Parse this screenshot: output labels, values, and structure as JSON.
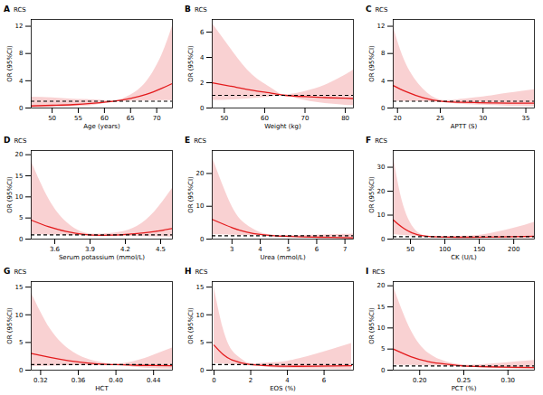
{
  "chart_data": [
    {
      "type": "line",
      "panel": "A",
      "title": "RCS",
      "x_label": "Age (years)",
      "y_label": "OR (95%CI)",
      "x": [
        46,
        50,
        54,
        58,
        62,
        65,
        68,
        71,
        73
      ],
      "values": [
        0.3,
        0.4,
        0.5,
        0.7,
        1.0,
        1.4,
        2.0,
        2.9,
        3.6
      ],
      "lower": [
        0.05,
        0.1,
        0.2,
        0.4,
        0.9,
        1.0,
        1.05,
        1.1,
        1.1
      ],
      "upper": [
        1.6,
        1.5,
        1.3,
        1.2,
        1.1,
        1.9,
        3.8,
        7.8,
        12.0
      ],
      "color": "#e31a1c",
      "xlim": [
        46,
        73
      ],
      "xticks": [
        50,
        55,
        60,
        65,
        70
      ],
      "ylim": [
        0,
        13
      ],
      "yticks": [
        0,
        4,
        8,
        12
      ],
      "reference": {
        "value": 1,
        "line_style": "dashed"
      }
    },
    {
      "type": "line",
      "panel": "B",
      "title": "RCS",
      "x_label": "Weight (kg)",
      "y_label": "OR (95%CI)",
      "x": [
        47,
        52,
        57,
        62,
        65,
        70,
        75,
        80,
        82
      ],
      "values": [
        2.0,
        1.7,
        1.4,
        1.15,
        1.0,
        0.9,
        0.82,
        0.77,
        0.75
      ],
      "lower": [
        0.6,
        0.65,
        0.75,
        0.9,
        0.95,
        0.6,
        0.35,
        0.22,
        0.2
      ],
      "upper": [
        6.7,
        4.5,
        2.6,
        1.5,
        1.05,
        1.3,
        1.8,
        2.6,
        3.0
      ],
      "color": "#e31a1c",
      "xlim": [
        47,
        82
      ],
      "xticks": [
        50,
        60,
        70,
        80
      ],
      "ylim": [
        0,
        7
      ],
      "yticks": [
        0,
        2,
        4,
        6
      ],
      "reference": {
        "value": 1,
        "line_style": "dashed"
      }
    },
    {
      "type": "line",
      "panel": "C",
      "title": "RCS",
      "x_label": "APTT (S)",
      "y_label": "OR (95%CI)",
      "x": [
        19.5,
        21,
        23,
        25,
        27,
        29,
        31,
        33,
        36
      ],
      "values": [
        3.3,
        2.4,
        1.5,
        1.0,
        0.85,
        0.8,
        0.75,
        0.72,
        0.7
      ],
      "lower": [
        1.0,
        0.95,
        0.9,
        0.85,
        0.6,
        0.45,
        0.35,
        0.28,
        0.2
      ],
      "upper": [
        12,
        6.5,
        2.8,
        1.2,
        1.2,
        1.5,
        1.8,
        2.2,
        2.7
      ],
      "color": "#e31a1c",
      "xlim": [
        19.5,
        36
      ],
      "xticks": [
        20,
        25,
        30,
        35
      ],
      "ylim": [
        0,
        13
      ],
      "yticks": [
        0,
        4,
        8,
        12
      ],
      "reference": {
        "value": 1,
        "line_style": "dashed"
      }
    },
    {
      "type": "line",
      "panel": "D",
      "title": "RCS",
      "x_label": "Serum potassium (mmol/L)",
      "y_label": "OR (95%CI)",
      "x": [
        3.4,
        3.55,
        3.7,
        3.85,
        4.0,
        4.15,
        4.3,
        4.45,
        4.6
      ],
      "values": [
        4.5,
        2.9,
        1.8,
        1.1,
        0.9,
        1.0,
        1.3,
        1.8,
        2.5
      ],
      "lower": [
        1.0,
        0.95,
        0.9,
        0.8,
        0.7,
        0.65,
        0.6,
        0.55,
        0.5
      ],
      "upper": [
        18.5,
        9.5,
        4.0,
        1.5,
        1.2,
        1.6,
        3.0,
        6.5,
        12.0
      ],
      "color": "#e31a1c",
      "xlim": [
        3.4,
        4.6
      ],
      "xticks": [
        3.6,
        3.9,
        4.2,
        4.5
      ],
      "ylim": [
        0,
        21
      ],
      "yticks": [
        0,
        5,
        10,
        15,
        20
      ],
      "reference": {
        "value": 1,
        "line_style": "dashed"
      }
    },
    {
      "type": "line",
      "panel": "E",
      "title": "RCS",
      "x_label": "Urea (mmol/L)",
      "y_label": "OR (95%CI)",
      "x": [
        2.3,
        3,
        3.5,
        4,
        4.5,
        5,
        5.5,
        6.5,
        7.3
      ],
      "values": [
        6.0,
        3.5,
        2.2,
        1.4,
        1.0,
        0.8,
        0.65,
        0.5,
        0.4
      ],
      "lower": [
        1.3,
        1.2,
        1.1,
        1.0,
        0.9,
        0.6,
        0.4,
        0.2,
        0.1
      ],
      "upper": [
        25,
        10,
        4.5,
        2.0,
        1.2,
        1.1,
        1.1,
        1.3,
        1.5
      ],
      "color": "#e31a1c",
      "xlim": [
        2.3,
        7.3
      ],
      "xticks": [
        3,
        4,
        5,
        6,
        7
      ],
      "ylim": [
        0,
        27
      ],
      "yticks": [
        0,
        10,
        20
      ],
      "reference": {
        "value": 1,
        "line_style": "dashed"
      }
    },
    {
      "type": "line",
      "panel": "F",
      "title": "RCS",
      "x_label": "CK (U/L)",
      "y_label": "OR (95%CI)",
      "x": [
        25,
        40,
        60,
        80,
        100,
        130,
        160,
        200,
        230
      ],
      "values": [
        8.0,
        4.5,
        1.8,
        1.0,
        0.8,
        0.75,
        0.8,
        1.0,
        1.2
      ],
      "lower": [
        1.8,
        1.5,
        1.1,
        0.9,
        0.7,
        0.5,
        0.35,
        0.25,
        0.2
      ],
      "upper": [
        35,
        14,
        3.0,
        1.1,
        1.0,
        1.2,
        2.0,
        4.5,
        7.0
      ],
      "color": "#e31a1c",
      "xlim": [
        25,
        230
      ],
      "xticks": [
        50,
        100,
        150,
        200
      ],
      "ylim": [
        0,
        37
      ],
      "yticks": [
        0,
        10,
        20,
        30
      ],
      "reference": {
        "value": 1,
        "line_style": "dashed"
      }
    },
    {
      "type": "line",
      "panel": "G",
      "title": "RCS",
      "x_label": "HCT",
      "y_label": "OR (95%CI)",
      "x": [
        0.31,
        0.33,
        0.35,
        0.37,
        0.39,
        0.4,
        0.42,
        0.44,
        0.46
      ],
      "values": [
        3.0,
        2.3,
        1.7,
        1.3,
        1.05,
        1.0,
        0.9,
        0.85,
        0.8
      ],
      "lower": [
        0.7,
        0.75,
        0.8,
        0.85,
        0.9,
        0.95,
        0.55,
        0.3,
        0.15
      ],
      "upper": [
        14,
        7.5,
        3.8,
        2.0,
        1.2,
        1.05,
        1.6,
        2.7,
        4.0
      ],
      "color": "#e31a1c",
      "xlim": [
        0.31,
        0.46
      ],
      "xticks": [
        0.32,
        0.36,
        {
          "value": 0.4,
          "label": "0.40"
        },
        0.44
      ],
      "ylim": [
        0,
        16
      ],
      "yticks": [
        0,
        5,
        10,
        15
      ],
      "reference": {
        "value": 1,
        "line_style": "dashed"
      }
    },
    {
      "type": "line",
      "panel": "H",
      "title": "RCS",
      "x_label": "EOS (%)",
      "y_label": "OR (95%CI)",
      "x": [
        0,
        0.5,
        1,
        1.5,
        2,
        3,
        4,
        5.5,
        7.5
      ],
      "values": [
        4.5,
        2.8,
        1.8,
        1.3,
        1.0,
        0.8,
        0.7,
        0.72,
        0.8
      ],
      "lower": [
        1.2,
        1.1,
        1.0,
        0.9,
        0.8,
        0.5,
        0.3,
        0.2,
        0.1
      ],
      "upper": [
        15,
        7.5,
        3.5,
        2.0,
        1.2,
        1.3,
        1.6,
        2.8,
        4.8
      ],
      "color": "#e31a1c",
      "xlim": [
        -0.1,
        7.6
      ],
      "xticks": [
        0,
        2,
        4,
        6
      ],
      "ylim": [
        0,
        16
      ],
      "yticks": [
        0,
        5,
        10,
        15
      ],
      "reference": {
        "value": 1,
        "line_style": "dashed"
      }
    },
    {
      "type": "line",
      "panel": "I",
      "title": "RCS",
      "x_label": "PCT (%)",
      "y_label": "OR (95%CI)",
      "x": [
        0.17,
        0.19,
        0.21,
        0.23,
        0.25,
        0.27,
        0.29,
        0.31,
        0.33
      ],
      "values": [
        5.0,
        3.2,
        2.0,
        1.4,
        1.0,
        0.85,
        0.75,
        0.65,
        0.6
      ],
      "lower": [
        1.2,
        1.1,
        1.0,
        0.95,
        0.8,
        0.55,
        0.35,
        0.22,
        0.15
      ],
      "upper": [
        20,
        9.5,
        4.0,
        2.0,
        1.25,
        1.3,
        1.6,
        2.0,
        2.3
      ],
      "color": "#e31a1c",
      "xlim": [
        0.17,
        0.33
      ],
      "xticks": [
        {
          "value": 0.2,
          "label": "0.20"
        },
        0.25,
        {
          "value": 0.3,
          "label": "0.30"
        }
      ],
      "ylim": [
        0,
        21
      ],
      "yticks": [
        0,
        5,
        10,
        15,
        20
      ],
      "reference": {
        "value": 1,
        "line_style": "dashed"
      }
    }
  ]
}
